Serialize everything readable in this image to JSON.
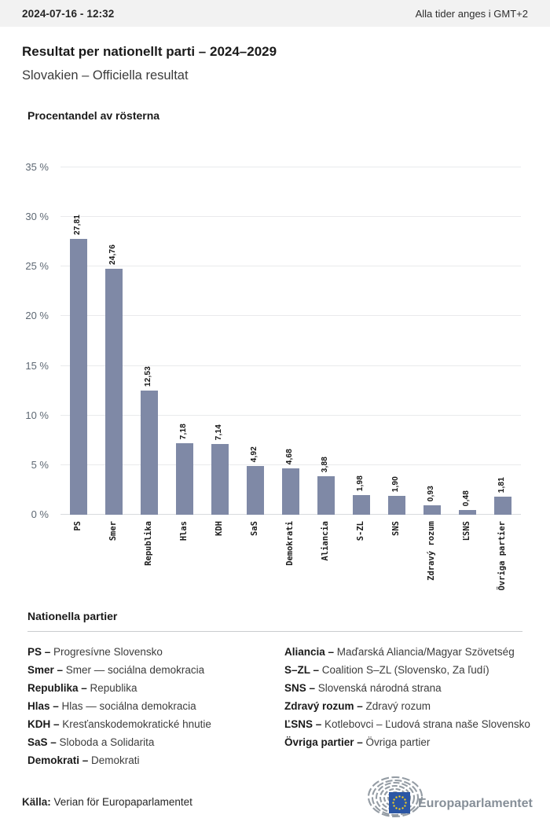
{
  "header": {
    "datetime": "2024-07-16 - 12:32",
    "timezone_note": "Alla tider anges i GMT+2"
  },
  "page": {
    "title": "Resultat per nationellt parti – 2024–2029",
    "subtitle": "Slovakien – Officiella resultat"
  },
  "chart_data": {
    "type": "bar",
    "title": "Procentandel av rösterna",
    "categories": [
      "PS",
      "Smer",
      "Republika",
      "Hlas",
      "KDH",
      "SaS",
      "Demokrati",
      "Aliancia",
      "S-ZL",
      "SNS",
      "Zdravý rozum",
      "ĽSNS",
      "Övriga partier"
    ],
    "values": [
      27.81,
      24.76,
      12.53,
      7.18,
      7.14,
      4.92,
      4.68,
      3.88,
      1.98,
      1.9,
      0.93,
      0.48,
      1.81
    ],
    "value_labels": [
      "27,81",
      "24,76",
      "12,53",
      "7,18",
      "7,14",
      "4,92",
      "4,68",
      "3,88",
      "1,98",
      "1,90",
      "0,93",
      "0,48",
      "1,81"
    ],
    "ylabel": "Procentandel av rösterna",
    "xlabel": "",
    "ylim": [
      0,
      35
    ],
    "ytick_step": 5,
    "ytick_labels": [
      "0 %",
      "5 %",
      "10 %",
      "15 %",
      "20 %",
      "25 %",
      "30 %",
      "35 %"
    ],
    "grid": true,
    "legend_position": "none",
    "bar_color": "#7f89a6"
  },
  "legend": {
    "heading": "Nationella partier",
    "separator": " – ",
    "columns": [
      [
        {
          "abbr": "PS",
          "name": "Progresívne Slovensko"
        },
        {
          "abbr": "Smer",
          "name": "Smer — sociálna demokracia"
        },
        {
          "abbr": "Republika",
          "name": "Republika"
        },
        {
          "abbr": "Hlas",
          "name": "Hlas — sociálna demokracia"
        },
        {
          "abbr": "KDH",
          "name": "Kresťanskodemokratické hnutie"
        },
        {
          "abbr": "SaS",
          "name": "Sloboda a Solidarita"
        },
        {
          "abbr": "Demokrati",
          "name": "Demokrati"
        }
      ],
      [
        {
          "abbr": "Aliancia",
          "name": "Maďarská Aliancia/Magyar Szövetség"
        },
        {
          "abbr": "S–ZL",
          "name": "Coalition S–ZL (Slovensko, Za ľudí)"
        },
        {
          "abbr": "SNS",
          "name": "Slovenská národná strana"
        },
        {
          "abbr": "Zdravý rozum",
          "name": "Zdravý rozum"
        },
        {
          "abbr": "ĽSNS",
          "name": "Kotlebovci – Ľudová strana naše Slovensko"
        },
        {
          "abbr": "Övriga partier",
          "name": "Övriga partier"
        }
      ]
    ]
  },
  "footer": {
    "source_label": "Källa:",
    "source_text": " Verian för Europaparlamentet",
    "logo_text": "Europaparlamentet"
  },
  "colors": {
    "bar": "#7f89a6",
    "topbar_bg": "#f2f2f2",
    "eu_blue": "#2b56a4",
    "eu_star_yellow": "#ffd617",
    "logo_gray": "#949ca4"
  }
}
